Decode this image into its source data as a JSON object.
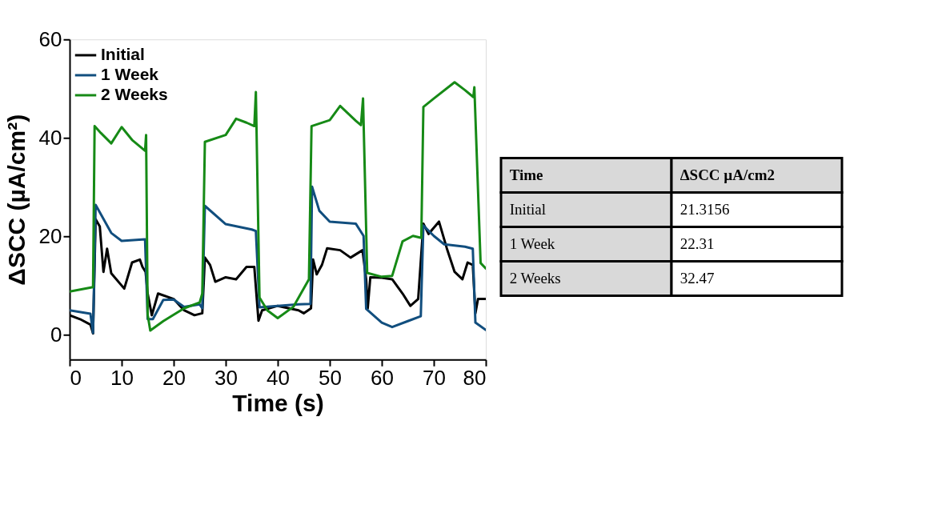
{
  "chart_data": [
    {
      "type": "line",
      "xlabel": "Time (s)",
      "ylabel": "ΔSCC (µA/cm²)",
      "xlim": [
        0,
        80
      ],
      "ylim": [
        -5,
        60
      ],
      "xticks": [
        0,
        10,
        20,
        30,
        40,
        50,
        60,
        70,
        80
      ],
      "yticks": [
        0,
        20,
        40,
        60
      ],
      "grid": false,
      "legend": "top left",
      "line_style": "solid",
      "marker": "none",
      "series": [
        {
          "name": "Initial",
          "color": "#000000",
          "x": [
            0,
            2,
            4,
            4.5,
            5,
            5.8,
            6.5,
            7.2,
            8,
            10.5,
            12,
            13.5,
            14,
            14.6,
            15,
            15.8,
            17,
            20,
            22,
            24,
            25.5,
            26,
            27,
            28,
            30,
            32,
            34,
            35.5,
            36.3,
            37,
            40,
            44,
            45,
            46.4,
            46.8,
            47.5,
            48.5,
            49.5,
            52,
            54,
            56.3,
            57,
            57.3,
            57.8,
            60,
            62,
            64,
            65.5,
            67,
            68,
            69,
            71,
            72.5,
            74,
            75.5,
            76.5,
            77.5,
            78,
            78.5,
            80
          ],
          "values": [
            4,
            3.2,
            2.1,
            0.3,
            23.5,
            22,
            12.8,
            17.5,
            12.5,
            9.4,
            14.7,
            15.3,
            13.8,
            12.8,
            8.4,
            4,
            8.4,
            7.3,
            5,
            4,
            4.4,
            15.7,
            14.2,
            10.8,
            11.7,
            11.3,
            13.8,
            13.8,
            2.9,
            5,
            5.9,
            5,
            4.4,
            5.4,
            15.3,
            12.3,
            14.2,
            17.6,
            17.2,
            15.7,
            17.2,
            11.3,
            5.4,
            11.7,
            11.6,
            11.3,
            8.4,
            5.9,
            7.3,
            22.6,
            20.5,
            23,
            17.6,
            12.8,
            11.3,
            14.7,
            14.2,
            4.4,
            7.3,
            7.3
          ]
        },
        {
          "name": "1 Week",
          "color": "#114e7e",
          "x": [
            0,
            4,
            4.5,
            5,
            8,
            10,
            14.5,
            15,
            16,
            18,
            20,
            22,
            25,
            25.5,
            26,
            30,
            35,
            35.8,
            36.5,
            40,
            44,
            46.3,
            46.6,
            48,
            50,
            55,
            56.5,
            57,
            60,
            62,
            65,
            67.5,
            68,
            70,
            72,
            76,
            77.5,
            78,
            80
          ],
          "values": [
            5,
            4.3,
            0.4,
            26.4,
            20.7,
            19.1,
            19.4,
            3.2,
            3.2,
            7.1,
            7.2,
            5.7,
            6.2,
            5.4,
            26.2,
            22.5,
            21.4,
            21.1,
            5.6,
            5.9,
            6.2,
            6.3,
            30.1,
            25.2,
            23,
            22.6,
            20.1,
            5.3,
            2.5,
            1.6,
            2.8,
            3.8,
            22.2,
            20.1,
            18.4,
            17.9,
            17.5,
            2.5,
            1
          ]
        },
        {
          "name": "2 Weeks",
          "color": "#168a16",
          "x": [
            0,
            4.5,
            4.8,
            6,
            8,
            10,
            12,
            14.5,
            14.7,
            15,
            15.5,
            18,
            22,
            25,
            25.5,
            26,
            30,
            32,
            34,
            35.5,
            35.8,
            36.5,
            38,
            40,
            43,
            46,
            46.5,
            50,
            52,
            55,
            56,
            56.4,
            57.2,
            60,
            62,
            64,
            66,
            67.6,
            68,
            70,
            74,
            76,
            77.6,
            77.8,
            79,
            80
          ],
          "values": [
            8.8,
            9.7,
            42.4,
            41,
            38.9,
            42.2,
            39.6,
            37.4,
            40.6,
            4.1,
            0.9,
            2.8,
            5.4,
            6.6,
            8.4,
            39.2,
            40.6,
            43.9,
            43.1,
            42.4,
            49.3,
            7.6,
            5,
            3.4,
            5.7,
            11.3,
            42.4,
            43.6,
            46.5,
            43.5,
            42.6,
            48,
            12.6,
            11.8,
            12,
            19,
            20.1,
            19.7,
            46.3,
            48,
            51.3,
            49.7,
            48.3,
            50.3,
            14.6,
            13.5
          ]
        }
      ]
    },
    {
      "type": "other",
      "xlabel": "Time",
      "ylabel": "ΔSCC µA/cm2",
      "categories": [
        "Initial",
        "1 Week",
        "2 Weeks"
      ],
      "values": [
        21.3156,
        22.31,
        32.47
      ],
      "data_labels": true
    }
  ]
}
